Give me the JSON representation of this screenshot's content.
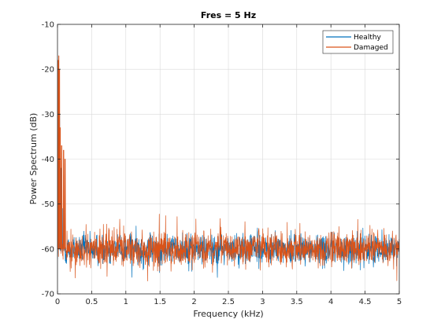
{
  "chart_data": {
    "type": "line",
    "title": "Fres = 5 Hz",
    "xlabel": "Frequency (kHz)",
    "ylabel": "Power Spectrum (dB)",
    "xlim": [
      0,
      5
    ],
    "ylim": [
      -70,
      -10
    ],
    "xticks": [
      "0",
      "0.5",
      "1",
      "1.5",
      "2",
      "2.5",
      "3",
      "3.5",
      "4",
      "4.5",
      "5"
    ],
    "yticks": [
      "-10",
      "-20",
      "-30",
      "-40",
      "-50",
      "-60",
      "-70"
    ],
    "grid": true,
    "legend_position": "top-right",
    "series": [
      {
        "name": "Healthy",
        "color": "#0072BD",
        "noise_floor_mean": -60,
        "noise_floor_range": [
          -68,
          -53
        ],
        "peaks": [
          {
            "x": 0.01,
            "y": -34
          },
          {
            "x": 0.02,
            "y": -28
          },
          {
            "x": 0.03,
            "y": -30
          },
          {
            "x": 0.05,
            "y": -42
          },
          {
            "x": 0.08,
            "y": -51
          }
        ]
      },
      {
        "name": "Damaged",
        "color": "#D95319",
        "noise_floor_mean": -60,
        "noise_floor_range": [
          -69,
          -51
        ],
        "peaks": [
          {
            "x": 0.01,
            "y": -18
          },
          {
            "x": 0.02,
            "y": -17
          },
          {
            "x": 0.03,
            "y": -20
          },
          {
            "x": 0.04,
            "y": -33
          },
          {
            "x": 0.06,
            "y": -37
          },
          {
            "x": 0.09,
            "y": -38
          },
          {
            "x": 0.11,
            "y": -40
          }
        ]
      }
    ]
  }
}
